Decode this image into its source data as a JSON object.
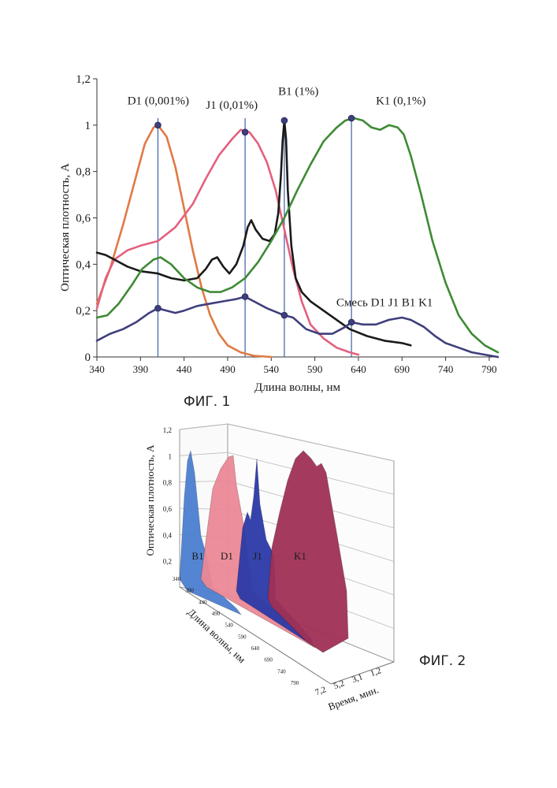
{
  "fig1": {
    "caption": "ФИГ. 1",
    "chart_data": {
      "type": "line",
      "xlabel": "Длина волны, нм",
      "ylabel": "Оптическая плотность, А",
      "xlim": [
        340,
        800
      ],
      "ylim": [
        0,
        1.2
      ],
      "x_ticks": [
        "340",
        "390",
        "440",
        "490",
        "540",
        "590",
        "640",
        "690",
        "740",
        "790"
      ],
      "y_ticks": [
        "0",
        "0,2",
        "0,4",
        "0,6",
        "0,8",
        "1",
        "1,2"
      ],
      "grid": false,
      "series": [
        {
          "name": "D1 (0,001%)",
          "color": "#e07a45",
          "points": [
            [
              340,
              0.23
            ],
            [
              355,
              0.38
            ],
            [
              370,
              0.57
            ],
            [
              385,
              0.78
            ],
            [
              395,
              0.92
            ],
            [
              405,
              0.99
            ],
            [
              410,
              1.0
            ],
            [
              420,
              0.95
            ],
            [
              430,
              0.82
            ],
            [
              440,
              0.64
            ],
            [
              450,
              0.46
            ],
            [
              460,
              0.3
            ],
            [
              470,
              0.18
            ],
            [
              480,
              0.1
            ],
            [
              490,
              0.05
            ],
            [
              505,
              0.02
            ],
            [
              520,
              0.005
            ],
            [
              540,
              0.0
            ]
          ]
        },
        {
          "name": "J1 (0,01%)",
          "color": "#e4607e",
          "points": [
            [
              340,
              0.21
            ],
            [
              350,
              0.34
            ],
            [
              360,
              0.42
            ],
            [
              375,
              0.46
            ],
            [
              390,
              0.48
            ],
            [
              410,
              0.5
            ],
            [
              430,
              0.56
            ],
            [
              450,
              0.66
            ],
            [
              465,
              0.77
            ],
            [
              480,
              0.87
            ],
            [
              495,
              0.94
            ],
            [
              505,
              0.98
            ],
            [
              515,
              0.97
            ],
            [
              525,
              0.92
            ],
            [
              535,
              0.84
            ],
            [
              545,
              0.72
            ],
            [
              555,
              0.55
            ],
            [
              565,
              0.38
            ],
            [
              575,
              0.24
            ],
            [
              585,
              0.14
            ],
            [
              600,
              0.08
            ],
            [
              615,
              0.04
            ],
            [
              630,
              0.02
            ],
            [
              640,
              0.01
            ]
          ]
        },
        {
          "name": "B1 (1%)",
          "color": "#1a1a1a",
          "points": [
            [
              340,
              0.45
            ],
            [
              350,
              0.44
            ],
            [
              360,
              0.42
            ],
            [
              375,
              0.39
            ],
            [
              390,
              0.37
            ],
            [
              410,
              0.36
            ],
            [
              425,
              0.34
            ],
            [
              440,
              0.33
            ],
            [
              455,
              0.34
            ],
            [
              465,
              0.38
            ],
            [
              472,
              0.42
            ],
            [
              478,
              0.43
            ],
            [
              485,
              0.39
            ],
            [
              492,
              0.36
            ],
            [
              500,
              0.4
            ],
            [
              508,
              0.48
            ],
            [
              513,
              0.56
            ],
            [
              517,
              0.59
            ],
            [
              522,
              0.55
            ],
            [
              530,
              0.51
            ],
            [
              538,
              0.5
            ],
            [
              544,
              0.53
            ],
            [
              548,
              0.62
            ],
            [
              551,
              0.78
            ],
            [
              553,
              0.93
            ],
            [
              555,
              1.02
            ],
            [
              557,
              0.94
            ],
            [
              559,
              0.72
            ],
            [
              563,
              0.48
            ],
            [
              568,
              0.34
            ],
            [
              575,
              0.28
            ],
            [
              585,
              0.24
            ],
            [
              600,
              0.2
            ],
            [
              615,
              0.16
            ],
            [
              630,
              0.12
            ],
            [
              650,
              0.09
            ],
            [
              670,
              0.07
            ],
            [
              690,
              0.06
            ],
            [
              700,
              0.05
            ]
          ]
        },
        {
          "name": "K1 (0,1%)",
          "color": "#3e8a34",
          "points": [
            [
              340,
              0.17
            ],
            [
              352,
              0.18
            ],
            [
              365,
              0.23
            ],
            [
              380,
              0.31
            ],
            [
              392,
              0.38
            ],
            [
              405,
              0.42
            ],
            [
              413,
              0.43
            ],
            [
              425,
              0.4
            ],
            [
              440,
              0.34
            ],
            [
              455,
              0.3
            ],
            [
              470,
              0.28
            ],
            [
              482,
              0.28
            ],
            [
              495,
              0.3
            ],
            [
              510,
              0.34
            ],
            [
              525,
              0.41
            ],
            [
              540,
              0.5
            ],
            [
              555,
              0.6
            ],
            [
              570,
              0.72
            ],
            [
              585,
              0.83
            ],
            [
              600,
              0.93
            ],
            [
              615,
              0.99
            ],
            [
              625,
              1.02
            ],
            [
              635,
              1.03
            ],
            [
              645,
              1.02
            ],
            [
              655,
              0.99
            ],
            [
              665,
              0.98
            ],
            [
              675,
              1.0
            ],
            [
              685,
              0.99
            ],
            [
              692,
              0.96
            ],
            [
              700,
              0.87
            ],
            [
              712,
              0.7
            ],
            [
              725,
              0.5
            ],
            [
              740,
              0.32
            ],
            [
              755,
              0.18
            ],
            [
              770,
              0.1
            ],
            [
              785,
              0.05
            ],
            [
              800,
              0.02
            ]
          ]
        },
        {
          "name": "Смесь D1 J1 B1 K1",
          "color": "#3f3f7d",
          "points": [
            [
              340,
              0.07
            ],
            [
              355,
              0.1
            ],
            [
              370,
              0.12
            ],
            [
              385,
              0.15
            ],
            [
              400,
              0.19
            ],
            [
              410,
              0.21
            ],
            [
              420,
              0.2
            ],
            [
              430,
              0.19
            ],
            [
              440,
              0.2
            ],
            [
              455,
              0.22
            ],
            [
              470,
              0.23
            ],
            [
              485,
              0.24
            ],
            [
              500,
              0.25
            ],
            [
              510,
              0.26
            ],
            [
              520,
              0.24
            ],
            [
              535,
              0.21
            ],
            [
              548,
              0.19
            ],
            [
              555,
              0.18
            ],
            [
              565,
              0.17
            ],
            [
              580,
              0.12
            ],
            [
              595,
              0.1
            ],
            [
              610,
              0.1
            ],
            [
              625,
              0.13
            ],
            [
              632,
              0.15
            ],
            [
              645,
              0.14
            ],
            [
              660,
              0.14
            ],
            [
              675,
              0.16
            ],
            [
              690,
              0.17
            ],
            [
              700,
              0.16
            ],
            [
              715,
              0.13
            ],
            [
              728,
              0.09
            ],
            [
              740,
              0.06
            ],
            [
              755,
              0.04
            ],
            [
              770,
              0.02
            ],
            [
              785,
              0.01
            ],
            [
              800,
              0.0
            ]
          ]
        }
      ],
      "markers": [
        {
          "series": "D1 (0,001%)",
          "x": 410,
          "y": 1.0
        },
        {
          "series": "J1 (0,01%)",
          "x": 510,
          "y": 0.97
        },
        {
          "series": "B1 (1%)",
          "x": 555,
          "y": 1.02
        },
        {
          "series": "K1 (0,1%)",
          "x": 632,
          "y": 1.03
        },
        {
          "series": "Смесь D1 J1 B1 K1",
          "x": 410,
          "y": 0.21
        },
        {
          "series": "Смесь D1 J1 B1 K1",
          "x": 510,
          "y": 0.26
        },
        {
          "series": "Смесь D1 J1 B1 K1",
          "x": 555,
          "y": 0.18
        },
        {
          "series": "Смесь D1 J1 B1 K1",
          "x": 632,
          "y": 0.15
        }
      ],
      "vertical_lines": [
        410,
        510,
        555,
        632
      ],
      "annotations": [
        "D1 (0,001%)",
        "J1 (0,01%)",
        "B1 (1%)",
        "K1 (0,1%)",
        "Смесь D1 J1 B1 K1"
      ]
    }
  },
  "fig2": {
    "caption": "ФИГ. 2",
    "chart_data": {
      "type": "area",
      "projection": "3d",
      "zlabel": "Оптическая плотность, А",
      "xlabel": "Длина волны, нм",
      "ylabel": "Время, мин.",
      "z_ticks": [
        "0,2",
        "0,4",
        "0,6",
        "0,8",
        "1",
        "1,2"
      ],
      "x_ticks": [
        "340",
        "390",
        "440",
        "490",
        "540",
        "590",
        "640",
        "690",
        "740",
        "790"
      ],
      "y_ticks": [
        "7,2",
        "5,2",
        "3,1",
        "1,2"
      ],
      "series": [
        {
          "name": "B1",
          "color": "#4c7fd0",
          "time": "7,2"
        },
        {
          "name": "D1",
          "color": "#ec8996",
          "time": "5,2"
        },
        {
          "name": "J1",
          "color": "#2c3aa8",
          "time": "3,1"
        },
        {
          "name": "K1",
          "color": "#a03156",
          "time": "1,2"
        }
      ]
    }
  }
}
